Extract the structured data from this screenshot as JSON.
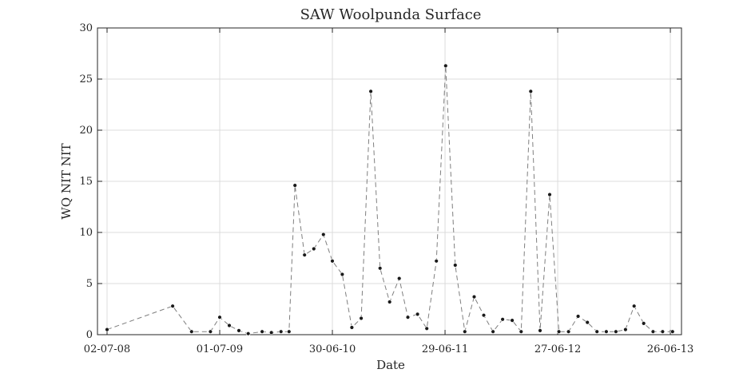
{
  "chart_data": {
    "type": "line",
    "title": "SAW Woolpunda Surface",
    "xlabel": "Date",
    "ylabel": "WQ NIT NIT",
    "x_is_date": true,
    "xlim": [
      "2008-06-01",
      "2013-08-01"
    ],
    "ylim": [
      0,
      30
    ],
    "yticks": [
      0,
      5,
      10,
      15,
      20,
      25,
      30
    ],
    "xticks": [
      {
        "date": "2008-07-02",
        "label": "02-07-08"
      },
      {
        "date": "2009-07-01",
        "label": "01-07-09"
      },
      {
        "date": "2010-06-30",
        "label": "30-06-10"
      },
      {
        "date": "2011-06-29",
        "label": "29-06-11"
      },
      {
        "date": "2012-06-27",
        "label": "27-06-12"
      },
      {
        "date": "2013-06-26",
        "label": "26-06-13"
      }
    ],
    "grid": true,
    "series": [
      {
        "color": "#1a1a1a",
        "line_color": "#7f7f7f",
        "line_style": "dashed",
        "x": [
          "2008-07-02",
          "2009-01-30",
          "2009-04-01",
          "2009-06-01",
          "2009-07-01",
          "2009-08-01",
          "2009-09-01",
          "2009-10-01",
          "2009-11-15",
          "2009-12-15",
          "2010-01-15",
          "2010-02-10",
          "2010-03-01",
          "2010-04-01",
          "2010-05-01",
          "2010-06-01",
          "2010-06-30",
          "2010-08-01",
          "2010-09-01",
          "2010-10-01",
          "2010-11-01",
          "2010-12-01",
          "2011-01-01",
          "2011-02-01",
          "2011-03-01",
          "2011-04-01",
          "2011-05-01",
          "2011-06-01",
          "2011-07-01",
          "2011-08-01",
          "2011-09-01",
          "2011-10-01",
          "2011-11-01",
          "2011-12-01",
          "2012-01-01",
          "2012-02-01",
          "2012-03-01",
          "2012-04-01",
          "2012-05-01",
          "2012-06-01",
          "2012-07-01",
          "2012-08-01",
          "2012-09-01",
          "2012-10-01",
          "2012-11-01",
          "2012-12-01",
          "2013-01-01",
          "2013-02-01",
          "2013-03-01",
          "2013-04-01",
          "2013-05-01",
          "2013-06-01",
          "2013-07-03"
        ],
        "y": [
          0.5,
          2.8,
          0.3,
          0.3,
          1.7,
          0.9,
          0.4,
          0.1,
          0.3,
          0.2,
          0.3,
          0.3,
          14.6,
          7.8,
          8.4,
          9.8,
          7.2,
          5.9,
          0.7,
          1.6,
          23.8,
          6.5,
          3.2,
          5.5,
          1.7,
          2.0,
          0.6,
          7.2,
          26.3,
          6.8,
          0.3,
          3.7,
          1.9,
          0.3,
          1.5,
          1.4,
          0.3,
          23.8,
          0.4,
          13.7,
          0.3,
          0.3,
          1.8,
          1.2,
          0.3,
          0.3,
          0.3,
          0.5,
          2.8,
          1.1,
          0.3,
          0.3,
          0.3
        ]
      }
    ]
  }
}
